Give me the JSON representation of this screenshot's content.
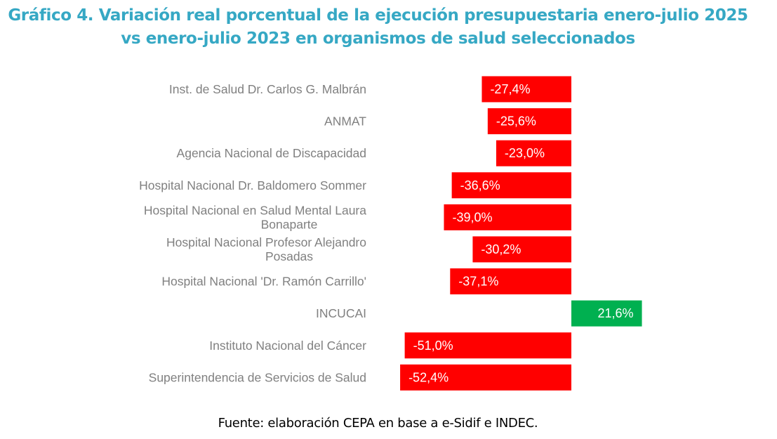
{
  "chart_data": {
    "type": "bar",
    "orientation": "horizontal",
    "title_lines": [
      "Gráfico 4. Variación real porcentual de la ejecución presupuestaria enero-julio 2025",
      "vs enero-julio 2023 en organismos de salud seleccionados"
    ],
    "categories": [
      "Inst. de Salud Dr. Carlos G. Malbrán",
      "ANMAT",
      "Agencia Nacional de Discapacidad",
      "Hospital Nacional Dr. Baldomero Sommer",
      "Hospital Nacional en Salud Mental Laura Bonaparte",
      "Hospital Nacional Profesor Alejandro Posadas",
      "Hospital Nacional 'Dr. Ramón Carrillo'",
      "INCUCAI",
      "Instituto Nacional del Cáncer",
      "Superintendencia de Servicios de Salud"
    ],
    "values": [
      -27.4,
      -25.6,
      -23.0,
      -36.6,
      -39.0,
      -30.2,
      -37.1,
      21.6,
      -51.0,
      -52.4
    ],
    "data_labels": [
      "-27,4%",
      "-25,6%",
      "-23,0%",
      "-36,6%",
      "-39,0%",
      "-30,2%",
      "-37,1%",
      "21,6%",
      "-51,0%",
      "-52,4%"
    ],
    "xlim": [
      -60,
      30
    ],
    "grid": false,
    "colors": {
      "negative": "#FF0000",
      "positive": "#00B050",
      "title": "#36A8C4",
      "category_label": "#808080"
    }
  },
  "source": "Fuente: elaboración CEPA en base a e-Sidif e INDEC."
}
